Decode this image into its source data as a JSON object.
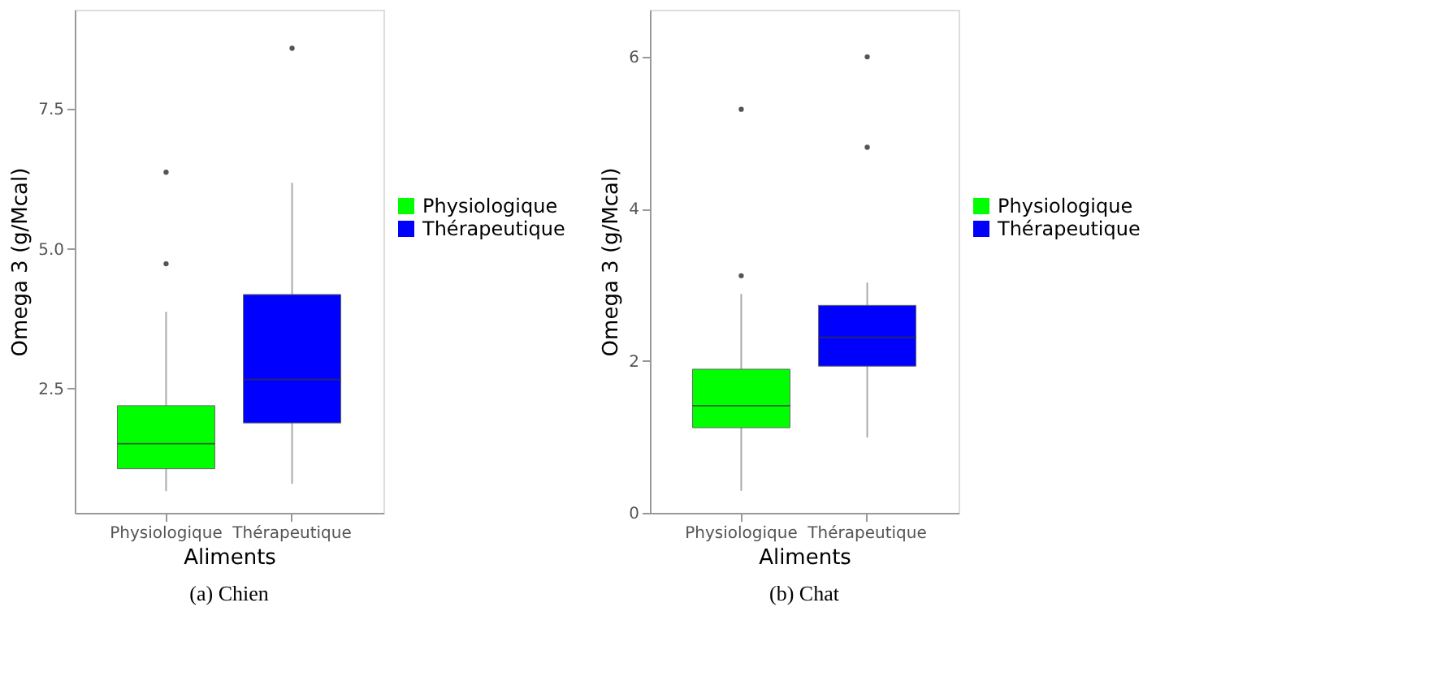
{
  "chart_data": [
    {
      "type": "box",
      "title": "(a) Chien",
      "xlabel": "Aliments",
      "ylabel": "Omega 3 (g/Mcal)",
      "categories": [
        "Physiologique",
        "Thérapeutique"
      ],
      "series": [
        {
          "name": "Physiologique",
          "color": "#00ff00",
          "x": [
            "Physiologique"
          ],
          "boxes": [
            {
              "low": 0.66,
              "q1": 1.06,
              "median": 1.51,
              "q3": 2.19,
              "high": 3.87,
              "outliers": [
                4.73,
                6.37
              ]
            }
          ]
        },
        {
          "name": "Thérapeutique",
          "color": "#0000ff",
          "x": [
            "Thérapeutique"
          ],
          "boxes": [
            {
              "low": 0.79,
              "q1": 1.88,
              "median": 2.66,
              "q3": 4.18,
              "high": 6.18,
              "outliers": [
                8.59
              ]
            }
          ]
        }
      ],
      "ylim": [
        0.27,
        9.28
      ],
      "yticks": [
        {
          "value": 2.5,
          "label": "2.5"
        },
        {
          "value": 5,
          "label": "5.0"
        },
        {
          "value": 7.5,
          "label": "7.5"
        }
      ],
      "grid": false,
      "legend": "right"
    },
    {
      "type": "box",
      "title": "(b) Chat",
      "xlabel": "Aliments",
      "ylabel": "Omega 3 (g/Mcal)",
      "categories": [
        "Physiologique",
        "Thérapeutique"
      ],
      "series": [
        {
          "name": "Physiologique",
          "color": "#00ff00",
          "x": [
            "Physiologique"
          ],
          "boxes": [
            {
              "low": 0.29,
              "q1": 1.12,
              "median": 1.41,
              "q3": 1.89,
              "high": 2.88,
              "outliers": [
                3.12,
                5.31
              ]
            }
          ]
        },
        {
          "name": "Thérapeutique",
          "color": "#0000ff",
          "x": [
            "Thérapeutique"
          ],
          "boxes": [
            {
              "low": 0.99,
              "q1": 1.93,
              "median": 2.31,
              "q3": 2.73,
              "high": 3.03,
              "outliers": [
                4.81,
                6.0
              ]
            }
          ]
        }
      ],
      "ylim": [
        0,
        6.62
      ],
      "yticks": [
        0,
        2,
        4,
        6
      ],
      "grid": false,
      "legend": "right"
    }
  ]
}
